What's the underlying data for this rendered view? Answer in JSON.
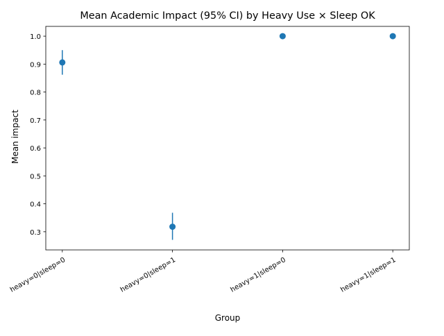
{
  "chart_data": {
    "type": "scatter",
    "title": "Mean Academic Impact (95% CI) by Heavy Use × Sleep OK",
    "xlabel": "Group",
    "ylabel": "Mean impact",
    "categories": [
      "heavy=0|sleep=0",
      "heavy=0|sleep=1",
      "heavy=1|sleep=0",
      "heavy=1|sleep=1"
    ],
    "values": [
      0.906,
      0.318,
      1.0,
      1.0
    ],
    "ci_low": [
      0.862,
      0.271,
      1.0,
      1.0
    ],
    "ci_high": [
      0.95,
      0.368,
      1.0,
      1.0
    ],
    "ylim": [
      0.235,
      1.035
    ],
    "yticks": [
      0.3,
      0.4,
      0.5,
      0.6,
      0.7,
      0.8,
      0.9,
      1.0
    ],
    "ytick_labels": [
      "0.3",
      "0.4",
      "0.5",
      "0.6",
      "0.7",
      "0.8",
      "0.9",
      "1.0"
    ],
    "grid": false,
    "color": "#1f77b4"
  }
}
